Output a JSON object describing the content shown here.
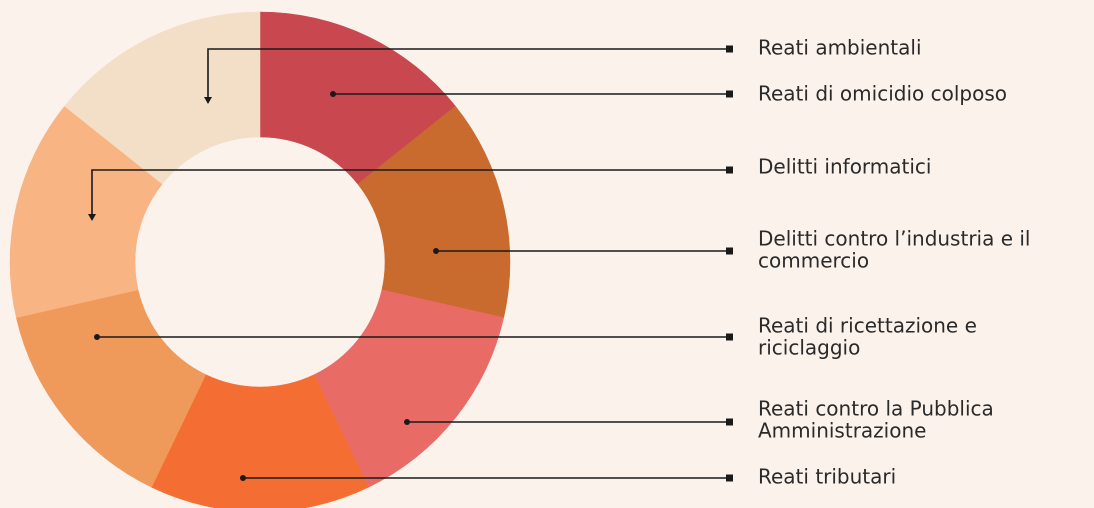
{
  "items": [
    {
      "label": [
        "Reati ambientali"
      ]
    },
    {
      "label": [
        "Reati di omicidio colposo"
      ]
    },
    {
      "label": [
        "Delitti informatici"
      ]
    },
    {
      "label": [
        "Delitti contro l’industria e il",
        "commercio"
      ]
    },
    {
      "label": [
        "Reati di ricettazione e",
        "riciclaggio"
      ]
    },
    {
      "label": [
        "Reati contro la Pubblica",
        "Amministrazione"
      ]
    },
    {
      "label": [
        "Reati tributari"
      ]
    }
  ]
}
